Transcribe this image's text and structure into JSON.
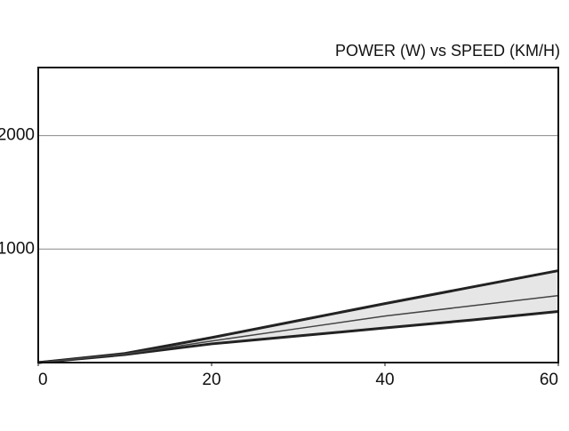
{
  "chart_data": {
    "type": "line",
    "title": "POWER (W) vs SPEED (KM/H)",
    "x": [
      0,
      10,
      20,
      30,
      40,
      50,
      60
    ],
    "series": [
      {
        "color": "#222222",
        "values": [
          0,
          80,
          220,
          370,
          520,
          665,
          810
        ]
      },
      {
        "color": "#222222",
        "values": [
          0,
          70,
          165,
          235,
          305,
          375,
          450
        ]
      },
      {
        "color": "#444444",
        "values": [
          0,
          75,
          190,
          300,
          410,
          500,
          590
        ]
      }
    ],
    "band_color": "#e6e6e6",
    "xlim": [
      0,
      60
    ],
    "xticks": [
      0,
      20,
      40,
      60
    ],
    "ylim": [
      0,
      2600
    ],
    "yticks": [
      1000,
      2000
    ],
    "grid": true
  }
}
